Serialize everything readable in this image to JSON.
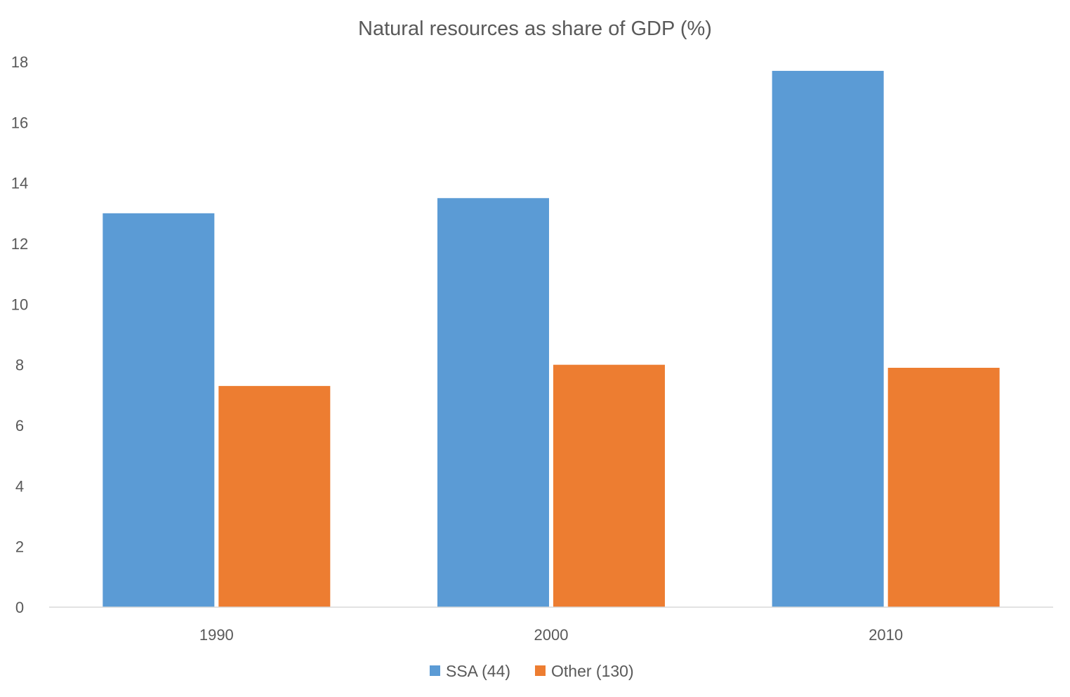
{
  "chart_data": {
    "type": "bar",
    "title": "Natural resources as share of GDP (%)",
    "xlabel": "",
    "ylabel": "",
    "categories": [
      "1990",
      "2000",
      "2010"
    ],
    "series": [
      {
        "name": "SSA (44)",
        "color": "#5B9BD5",
        "values": [
          13.0,
          13.5,
          17.7
        ]
      },
      {
        "name": "Other (130)",
        "color": "#ED7D31",
        "values": [
          7.3,
          8.0,
          7.9
        ]
      }
    ],
    "ylim": [
      0,
      18
    ],
    "yticks": [
      "0",
      "2",
      "4",
      "6",
      "8",
      "10",
      "12",
      "14",
      "16",
      "18"
    ],
    "grid": false,
    "legend_position": "bottom"
  }
}
